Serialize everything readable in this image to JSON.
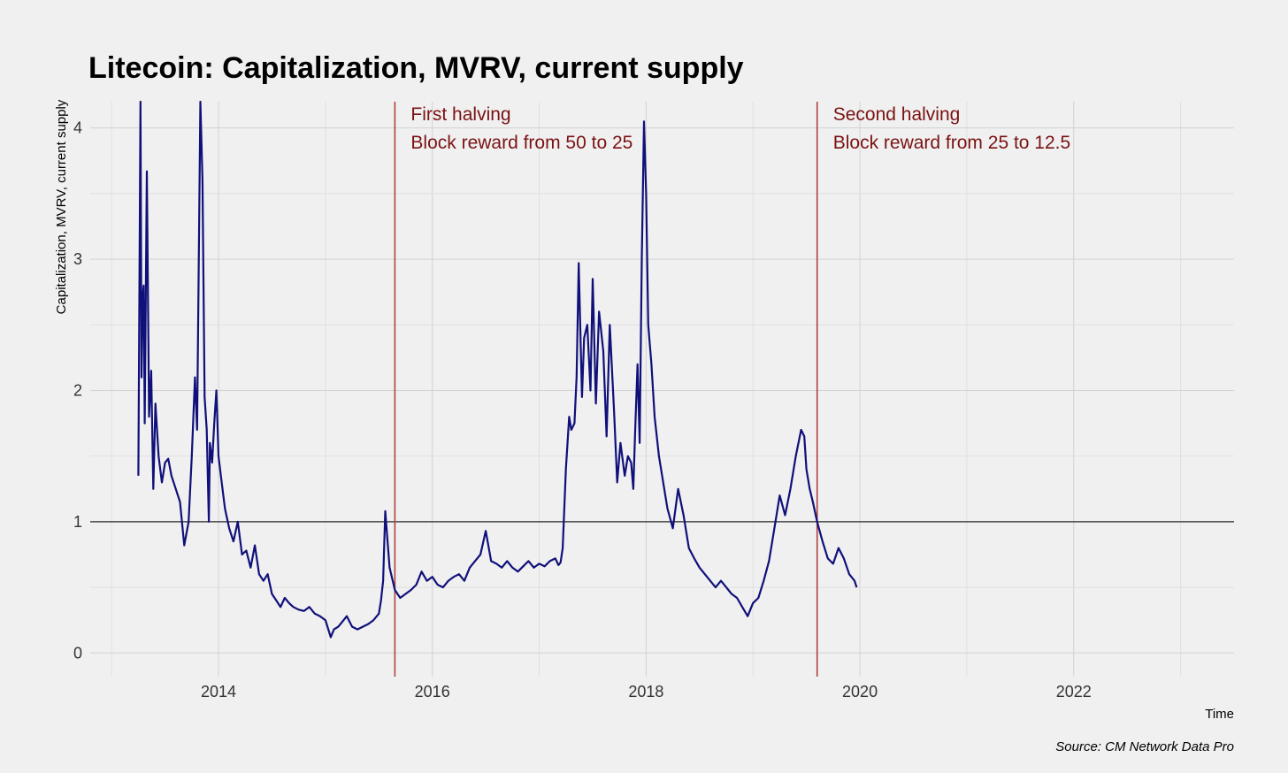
{
  "chart_data": {
    "type": "line",
    "title": "Litecoin: Capitalization, MVRV, current supply",
    "xlabel": "Time",
    "ylabel": "Capitalization, MVRV, current supply",
    "source": "Source: CM Network Data Pro",
    "xlim": [
      2012.8,
      2023.5
    ],
    "ylim": [
      -0.18,
      4.2
    ],
    "grid": true,
    "x_ticks": [
      2014,
      2016,
      2018,
      2020,
      2022
    ],
    "x_tick_labels": [
      "2014",
      "2016",
      "2018",
      "2020",
      "2022"
    ],
    "y_ticks": [
      0,
      1,
      2,
      3,
      4
    ],
    "y_tick_labels": [
      "0",
      "1",
      "2",
      "3",
      "4"
    ],
    "reference_line": {
      "y": 1,
      "color": "#444444"
    },
    "annotations": [
      {
        "x": 2015.65,
        "line1": "First halving",
        "line2": "Block reward from 50 to 25",
        "color": "#b04040"
      },
      {
        "x": 2019.6,
        "line1": "Second halving",
        "line2": "Block reward from 25 to 12.5",
        "color": "#b04040"
      }
    ],
    "series": [
      {
        "color": "#10107a",
        "x": [
          2013.25,
          2013.27,
          2013.28,
          2013.29,
          2013.3,
          2013.31,
          2013.33,
          2013.35,
          2013.37,
          2013.39,
          2013.41,
          2013.44,
          2013.47,
          2013.5,
          2013.53,
          2013.56,
          2013.6,
          2013.64,
          2013.68,
          2013.72,
          2013.75,
          2013.78,
          2013.8,
          2013.83,
          2013.85,
          2013.87,
          2013.89,
          2013.91,
          2013.92,
          2013.94,
          2013.96,
          2013.98,
          2014.0,
          2014.03,
          2014.06,
          2014.1,
          2014.14,
          2014.18,
          2014.22,
          2014.26,
          2014.3,
          2014.34,
          2014.38,
          2014.42,
          2014.46,
          2014.5,
          2014.54,
          2014.58,
          2014.62,
          2014.66,
          2014.7,
          2014.75,
          2014.8,
          2014.85,
          2014.9,
          2014.95,
          2015.0,
          2015.05,
          2015.08,
          2015.12,
          2015.16,
          2015.2,
          2015.25,
          2015.3,
          2015.35,
          2015.4,
          2015.45,
          2015.5,
          2015.52,
          2015.54,
          2015.56,
          2015.6,
          2015.65,
          2015.7,
          2015.75,
          2015.8,
          2015.85,
          2015.9,
          2015.95,
          2016.0,
          2016.05,
          2016.1,
          2016.15,
          2016.2,
          2016.25,
          2016.3,
          2016.35,
          2016.4,
          2016.45,
          2016.5,
          2016.55,
          2016.6,
          2016.65,
          2016.7,
          2016.75,
          2016.8,
          2016.85,
          2016.9,
          2016.95,
          2017.0,
          2017.05,
          2017.1,
          2017.15,
          2017.18,
          2017.2,
          2017.22,
          2017.25,
          2017.28,
          2017.3,
          2017.33,
          2017.35,
          2017.37,
          2017.4,
          2017.42,
          2017.45,
          2017.48,
          2017.5,
          2017.53,
          2017.56,
          2017.6,
          2017.63,
          2017.66,
          2017.7,
          2017.73,
          2017.76,
          2017.8,
          2017.83,
          2017.86,
          2017.88,
          2017.9,
          2017.92,
          2017.94,
          2017.96,
          2017.98,
          2018.0,
          2018.02,
          2018.05,
          2018.08,
          2018.12,
          2018.16,
          2018.2,
          2018.25,
          2018.3,
          2018.35,
          2018.4,
          2018.45,
          2018.5,
          2018.55,
          2018.6,
          2018.65,
          2018.7,
          2018.75,
          2018.8,
          2018.85,
          2018.9,
          2018.95,
          2019.0,
          2019.05,
          2019.1,
          2019.15,
          2019.2,
          2019.25,
          2019.3,
          2019.35,
          2019.4,
          2019.45,
          2019.48,
          2019.5,
          2019.53,
          2019.56,
          2019.6,
          2019.65,
          2019.7,
          2019.75,
          2019.8,
          2019.85,
          2019.9,
          2019.95,
          2019.97
        ],
        "y": [
          1.35,
          4.2,
          2.1,
          2.7,
          2.8,
          1.75,
          3.67,
          1.8,
          2.15,
          1.25,
          1.9,
          1.5,
          1.3,
          1.45,
          1.48,
          1.35,
          1.25,
          1.15,
          0.82,
          1.0,
          1.5,
          2.1,
          1.7,
          4.2,
          3.6,
          1.95,
          1.7,
          1.0,
          1.6,
          1.45,
          1.75,
          2.0,
          1.5,
          1.3,
          1.1,
          0.95,
          0.85,
          1.0,
          0.75,
          0.78,
          0.65,
          0.82,
          0.6,
          0.55,
          0.6,
          0.45,
          0.4,
          0.35,
          0.42,
          0.38,
          0.35,
          0.33,
          0.32,
          0.35,
          0.3,
          0.28,
          0.25,
          0.12,
          0.18,
          0.2,
          0.24,
          0.28,
          0.2,
          0.18,
          0.2,
          0.22,
          0.25,
          0.3,
          0.4,
          0.55,
          1.08,
          0.65,
          0.48,
          0.42,
          0.45,
          0.48,
          0.52,
          0.62,
          0.55,
          0.58,
          0.52,
          0.5,
          0.55,
          0.58,
          0.6,
          0.55,
          0.65,
          0.7,
          0.75,
          0.93,
          0.7,
          0.68,
          0.65,
          0.7,
          0.65,
          0.62,
          0.66,
          0.7,
          0.65,
          0.68,
          0.66,
          0.7,
          0.72,
          0.67,
          0.69,
          0.8,
          1.4,
          1.8,
          1.7,
          1.75,
          2.1,
          2.97,
          1.95,
          2.4,
          2.5,
          2.0,
          2.85,
          1.9,
          2.6,
          2.3,
          1.65,
          2.5,
          1.85,
          1.3,
          1.6,
          1.35,
          1.5,
          1.45,
          1.25,
          1.75,
          2.2,
          1.6,
          3.0,
          4.05,
          3.5,
          2.5,
          2.2,
          1.8,
          1.5,
          1.3,
          1.1,
          0.95,
          1.25,
          1.05,
          0.8,
          0.72,
          0.65,
          0.6,
          0.55,
          0.5,
          0.55,
          0.5,
          0.45,
          0.42,
          0.35,
          0.28,
          0.38,
          0.42,
          0.55,
          0.7,
          0.95,
          1.2,
          1.05,
          1.25,
          1.5,
          1.7,
          1.65,
          1.4,
          1.25,
          1.15,
          1.0,
          0.85,
          0.72,
          0.68,
          0.8,
          0.72,
          0.6,
          0.55,
          0.5
        ]
      }
    ]
  }
}
